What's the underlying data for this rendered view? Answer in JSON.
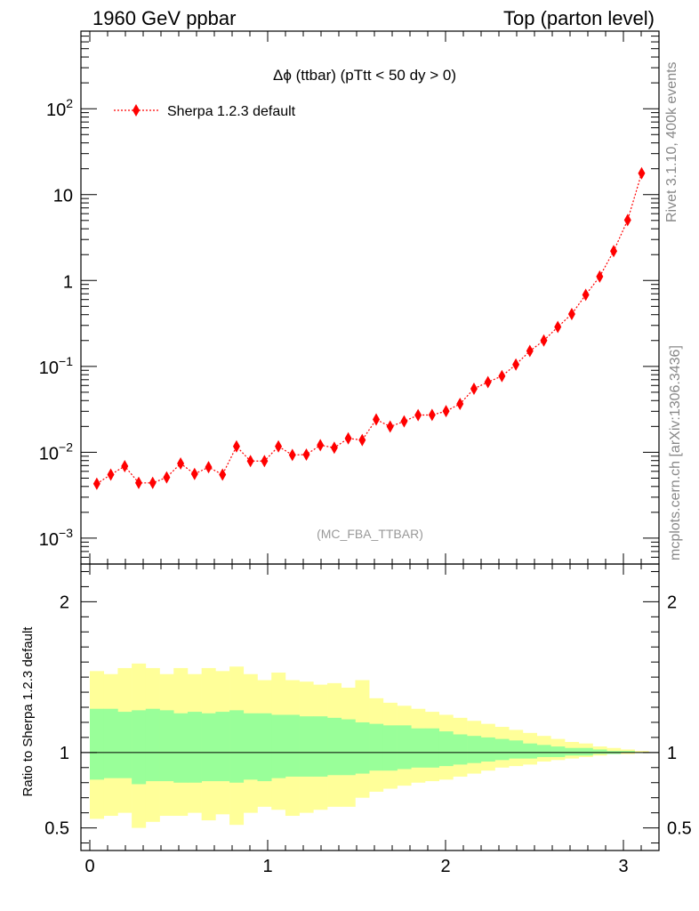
{
  "header": {
    "left": "1960 GeV ppbar",
    "right": "Top (parton level)"
  },
  "side": {
    "rivet": "Rivet 3.1.10,  400k events",
    "mcplots": "mcplots.cern.ch [arXiv:1306.3436]"
  },
  "colors": {
    "series": "#ff0000",
    "band_inner": "#99ff99",
    "band_outer": "#ffff99",
    "watermark": "#999999",
    "side_text": "#888888"
  },
  "chart_data": [
    {
      "type": "scatter",
      "title": "Δϕ (ttbar) (pTtt < 50 dy > 0)",
      "watermark": "(MC_FBA_TTBAR)",
      "yscale": "log",
      "xlim": [
        -0.05,
        3.2
      ],
      "ylim": [
        0.0005,
        800
      ],
      "yticks": [
        {
          "value": 0.001,
          "label": "10",
          "exp": "−3"
        },
        {
          "value": 0.01,
          "label": "10",
          "exp": "−2"
        },
        {
          "value": 0.1,
          "label": "10",
          "exp": "−1"
        },
        {
          "value": 1,
          "label": "1",
          "exp": ""
        },
        {
          "value": 10,
          "label": "10",
          "exp": ""
        },
        {
          "value": 100,
          "label": "10",
          "exp": "2"
        }
      ],
      "legend": {
        "label": "Sherpa 1.2.3 default",
        "position": "top-left"
      },
      "series": [
        {
          "name": "Sherpa 1.2.3 default",
          "x": [
            0.0393,
            0.1178,
            0.1963,
            0.2749,
            0.3534,
            0.432,
            0.5105,
            0.589,
            0.6676,
            0.7461,
            0.8247,
            0.9032,
            0.9817,
            1.0603,
            1.1388,
            1.2174,
            1.2959,
            1.3744,
            1.453,
            1.5315,
            1.6101,
            1.6886,
            1.7671,
            1.8457,
            1.9242,
            2.0028,
            2.0813,
            2.1598,
            2.2384,
            2.3169,
            2.3955,
            2.474,
            2.5525,
            2.6311,
            2.7096,
            2.7882,
            2.8667,
            2.9452,
            3.0238,
            3.1023
          ],
          "y": [
            0.0043,
            0.0055,
            0.0069,
            0.0044,
            0.0044,
            0.0051,
            0.0074,
            0.0056,
            0.0067,
            0.0055,
            0.0117,
            0.0079,
            0.0079,
            0.0117,
            0.0093,
            0.0094,
            0.0121,
            0.0113,
            0.0145,
            0.0139,
            0.0241,
            0.0199,
            0.0229,
            0.0271,
            0.0272,
            0.0301,
            0.0366,
            0.0549,
            0.0657,
            0.0772,
            0.105,
            0.151,
            0.2,
            0.288,
            0.407,
            0.682,
            1.11,
            2.2,
            5.05,
            17.7
          ],
          "yerr": [
            0.16,
            0.14,
            0.14,
            0.16,
            0.16,
            0.14,
            0.12,
            0.14,
            0.12,
            0.14,
            0.1,
            0.12,
            0.12,
            0.1,
            0.1,
            0.1,
            0.1,
            0.1,
            0.08,
            0.08,
            0.06,
            0.06,
            0.06,
            0.05,
            0.05,
            0.05,
            0.04,
            0.04,
            0.03,
            0.03,
            0.03,
            0.02,
            0.02,
            0.02,
            0.02,
            0.02,
            0.01,
            0.01,
            0.01,
            0.01
          ]
        }
      ]
    },
    {
      "type": "area",
      "ylabel": "Ratio to Sherpa 1.2.3 default",
      "xlim": [
        -0.05,
        3.2
      ],
      "ylim": [
        0.35,
        2.25
      ],
      "xticks": [
        0,
        1,
        2,
        3
      ],
      "yticks": [
        0.5,
        1,
        2
      ],
      "reference": 1,
      "bin_edges": [
        0,
        0.0785,
        0.1571,
        0.2356,
        0.3142,
        0.3927,
        0.4712,
        0.5498,
        0.6283,
        0.7069,
        0.7854,
        0.8639,
        0.9425,
        1.021,
        1.0996,
        1.1781,
        1.2566,
        1.3352,
        1.4137,
        1.4923,
        1.5708,
        1.6493,
        1.7279,
        1.8064,
        1.885,
        1.9635,
        2.042,
        2.1206,
        2.1991,
        2.2777,
        2.3562,
        2.4347,
        2.5133,
        2.5918,
        2.6704,
        2.7489,
        2.8274,
        2.906,
        2.9845,
        3.0631,
        3.1416
      ],
      "bands": [
        {
          "name": "inner",
          "low": [
            0.82,
            0.83,
            0.83,
            0.79,
            0.81,
            0.81,
            0.8,
            0.8,
            0.81,
            0.81,
            0.8,
            0.82,
            0.81,
            0.83,
            0.84,
            0.84,
            0.84,
            0.85,
            0.85,
            0.86,
            0.88,
            0.88,
            0.89,
            0.9,
            0.9,
            0.91,
            0.92,
            0.93,
            0.94,
            0.95,
            0.96,
            0.96,
            0.97,
            0.97,
            0.98,
            0.98,
            0.99,
            0.99,
            1.0,
            1.0
          ],
          "high": [
            1.29,
            1.29,
            1.27,
            1.28,
            1.29,
            1.28,
            1.26,
            1.27,
            1.26,
            1.27,
            1.28,
            1.26,
            1.26,
            1.25,
            1.25,
            1.24,
            1.24,
            1.23,
            1.22,
            1.2,
            1.19,
            1.18,
            1.18,
            1.16,
            1.16,
            1.14,
            1.12,
            1.11,
            1.1,
            1.09,
            1.08,
            1.06,
            1.05,
            1.04,
            1.03,
            1.03,
            1.02,
            1.01,
            1.01,
            1.0
          ]
        },
        {
          "name": "outer",
          "low": [
            0.56,
            0.58,
            0.6,
            0.5,
            0.54,
            0.58,
            0.58,
            0.6,
            0.55,
            0.59,
            0.52,
            0.6,
            0.64,
            0.62,
            0.58,
            0.6,
            0.62,
            0.64,
            0.64,
            0.7,
            0.74,
            0.76,
            0.78,
            0.8,
            0.81,
            0.82,
            0.84,
            0.86,
            0.88,
            0.9,
            0.91,
            0.92,
            0.94,
            0.95,
            0.96,
            0.97,
            0.98,
            0.99,
            0.99,
            1.0
          ],
          "high": [
            1.54,
            1.52,
            1.56,
            1.59,
            1.56,
            1.52,
            1.56,
            1.52,
            1.56,
            1.54,
            1.57,
            1.52,
            1.48,
            1.53,
            1.48,
            1.47,
            1.45,
            1.46,
            1.43,
            1.48,
            1.36,
            1.33,
            1.31,
            1.29,
            1.27,
            1.25,
            1.23,
            1.21,
            1.19,
            1.17,
            1.15,
            1.13,
            1.11,
            1.09,
            1.07,
            1.06,
            1.04,
            1.03,
            1.02,
            1.01
          ]
        }
      ]
    }
  ]
}
